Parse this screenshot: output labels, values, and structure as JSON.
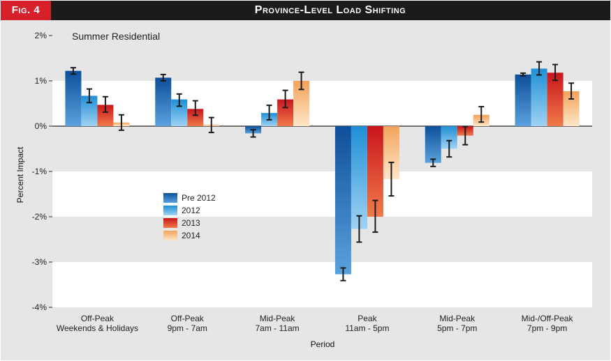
{
  "header": {
    "fig_label": "Fig. 4",
    "title": "Province-Level Load Shifting"
  },
  "chart_data": {
    "type": "bar",
    "title": "Province-Level Load Shifting",
    "subtitle": "Summer Residential",
    "xlabel": "Period",
    "ylabel": "Percent Impact",
    "ylim": [
      -4,
      2
    ],
    "yticks": [
      2,
      1,
      0,
      -1,
      -2,
      -3,
      -4
    ],
    "ytick_labels": [
      "2%",
      "1%",
      "0%",
      "-1%",
      "-2%",
      "-3%",
      "-4%"
    ],
    "categories": [
      [
        "Off-Peak",
        "Weekends & Holidays"
      ],
      [
        "Off-Peak",
        "9pm - 7am"
      ],
      [
        "Mid-Peak",
        "7am - 11am"
      ],
      [
        "Peak",
        "11am - 5pm"
      ],
      [
        "Mid-Peak",
        "5pm - 7pm"
      ],
      [
        "Mid-/Off-Peak",
        "7pm - 9pm"
      ]
    ],
    "series": [
      {
        "name": "Pre 2012",
        "color_top": "#0d4f9a",
        "color_bottom": "#5aa2dd",
        "values": [
          1.22,
          1.07,
          -0.16,
          -3.27,
          -0.81,
          1.14
        ],
        "err_low": [
          1.15,
          1.0,
          -0.24,
          -3.41,
          -0.89,
          1.11
        ],
        "err_high": [
          1.29,
          1.14,
          -0.08,
          -3.13,
          -0.73,
          1.17
        ]
      },
      {
        "name": "2012",
        "color_top": "#1f8fd6",
        "color_bottom": "#9fd2f3",
        "values": [
          0.67,
          0.59,
          0.29,
          -2.27,
          -0.5,
          1.27
        ],
        "err_low": [
          0.52,
          0.44,
          0.14,
          -2.56,
          -0.68,
          1.13
        ],
        "err_high": [
          0.82,
          0.71,
          0.46,
          -1.98,
          -0.32,
          1.42
        ]
      },
      {
        "name": "2013",
        "color_top": "#c8151c",
        "color_bottom": "#f07a4a",
        "values": [
          0.47,
          0.38,
          0.59,
          -2.0,
          -0.21,
          1.18
        ],
        "err_low": [
          0.31,
          0.24,
          0.41,
          -2.34,
          -0.41,
          1.01
        ],
        "err_high": [
          0.65,
          0.56,
          0.79,
          -1.64,
          -0.01,
          1.36
        ]
      },
      {
        "name": "2014",
        "color_top": "#f3a25a",
        "color_bottom": "#fde7c8",
        "values": [
          0.08,
          0.03,
          1.0,
          -1.17,
          0.25,
          0.77
        ],
        "err_low": [
          -0.09,
          -0.14,
          0.81,
          -1.54,
          0.09,
          0.6
        ],
        "err_high": [
          0.25,
          0.19,
          1.19,
          -0.8,
          0.43,
          0.95
        ]
      }
    ],
    "legend": {
      "placement": "middle-left",
      "entries": [
        "Pre 2012",
        "2012",
        "2013",
        "2014"
      ]
    },
    "background_bands": "alternating gray and white per 1% interval"
  }
}
